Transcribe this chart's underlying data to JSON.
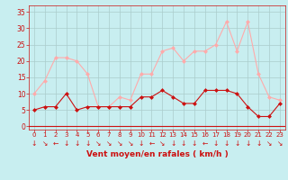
{
  "x": [
    0,
    1,
    2,
    3,
    4,
    5,
    6,
    7,
    8,
    9,
    10,
    11,
    12,
    13,
    14,
    15,
    16,
    17,
    18,
    19,
    20,
    21,
    22,
    23
  ],
  "wind_avg": [
    5,
    6,
    6,
    10,
    5,
    6,
    6,
    6,
    6,
    6,
    9,
    9,
    11,
    9,
    7,
    7,
    11,
    11,
    11,
    10,
    6,
    3,
    3,
    7
  ],
  "wind_gust": [
    10,
    14,
    21,
    21,
    20,
    16,
    6,
    6,
    9,
    8,
    16,
    16,
    23,
    24,
    20,
    23,
    23,
    25,
    32,
    23,
    32,
    16,
    9,
    8
  ],
  "bg_color": "#c8eef0",
  "grid_color": "#aacccc",
  "line_avg_color": "#cc1111",
  "line_gust_color": "#ffaaaa",
  "marker_color_avg": "#cc1111",
  "marker_color_gust": "#ffaaaa",
  "xlabel": "Vent moyen/en rafales ( km/h )",
  "yticks": [
    0,
    5,
    10,
    15,
    20,
    25,
    30,
    35
  ],
  "ylim": [
    -1,
    37
  ],
  "xlim": [
    -0.5,
    23.5
  ],
  "xlabel_color": "#cc1111",
  "tick_color": "#cc1111",
  "arrow_chars": [
    "↓",
    "↘",
    "←",
    "↓",
    "↓",
    "↓",
    "↘",
    "↘",
    "↘",
    "↘",
    "↓",
    "←",
    "↘",
    "↓",
    "↓",
    "↓",
    "←",
    "↓",
    "↓",
    "↓",
    "↓",
    "↓",
    "↘",
    "↘"
  ]
}
